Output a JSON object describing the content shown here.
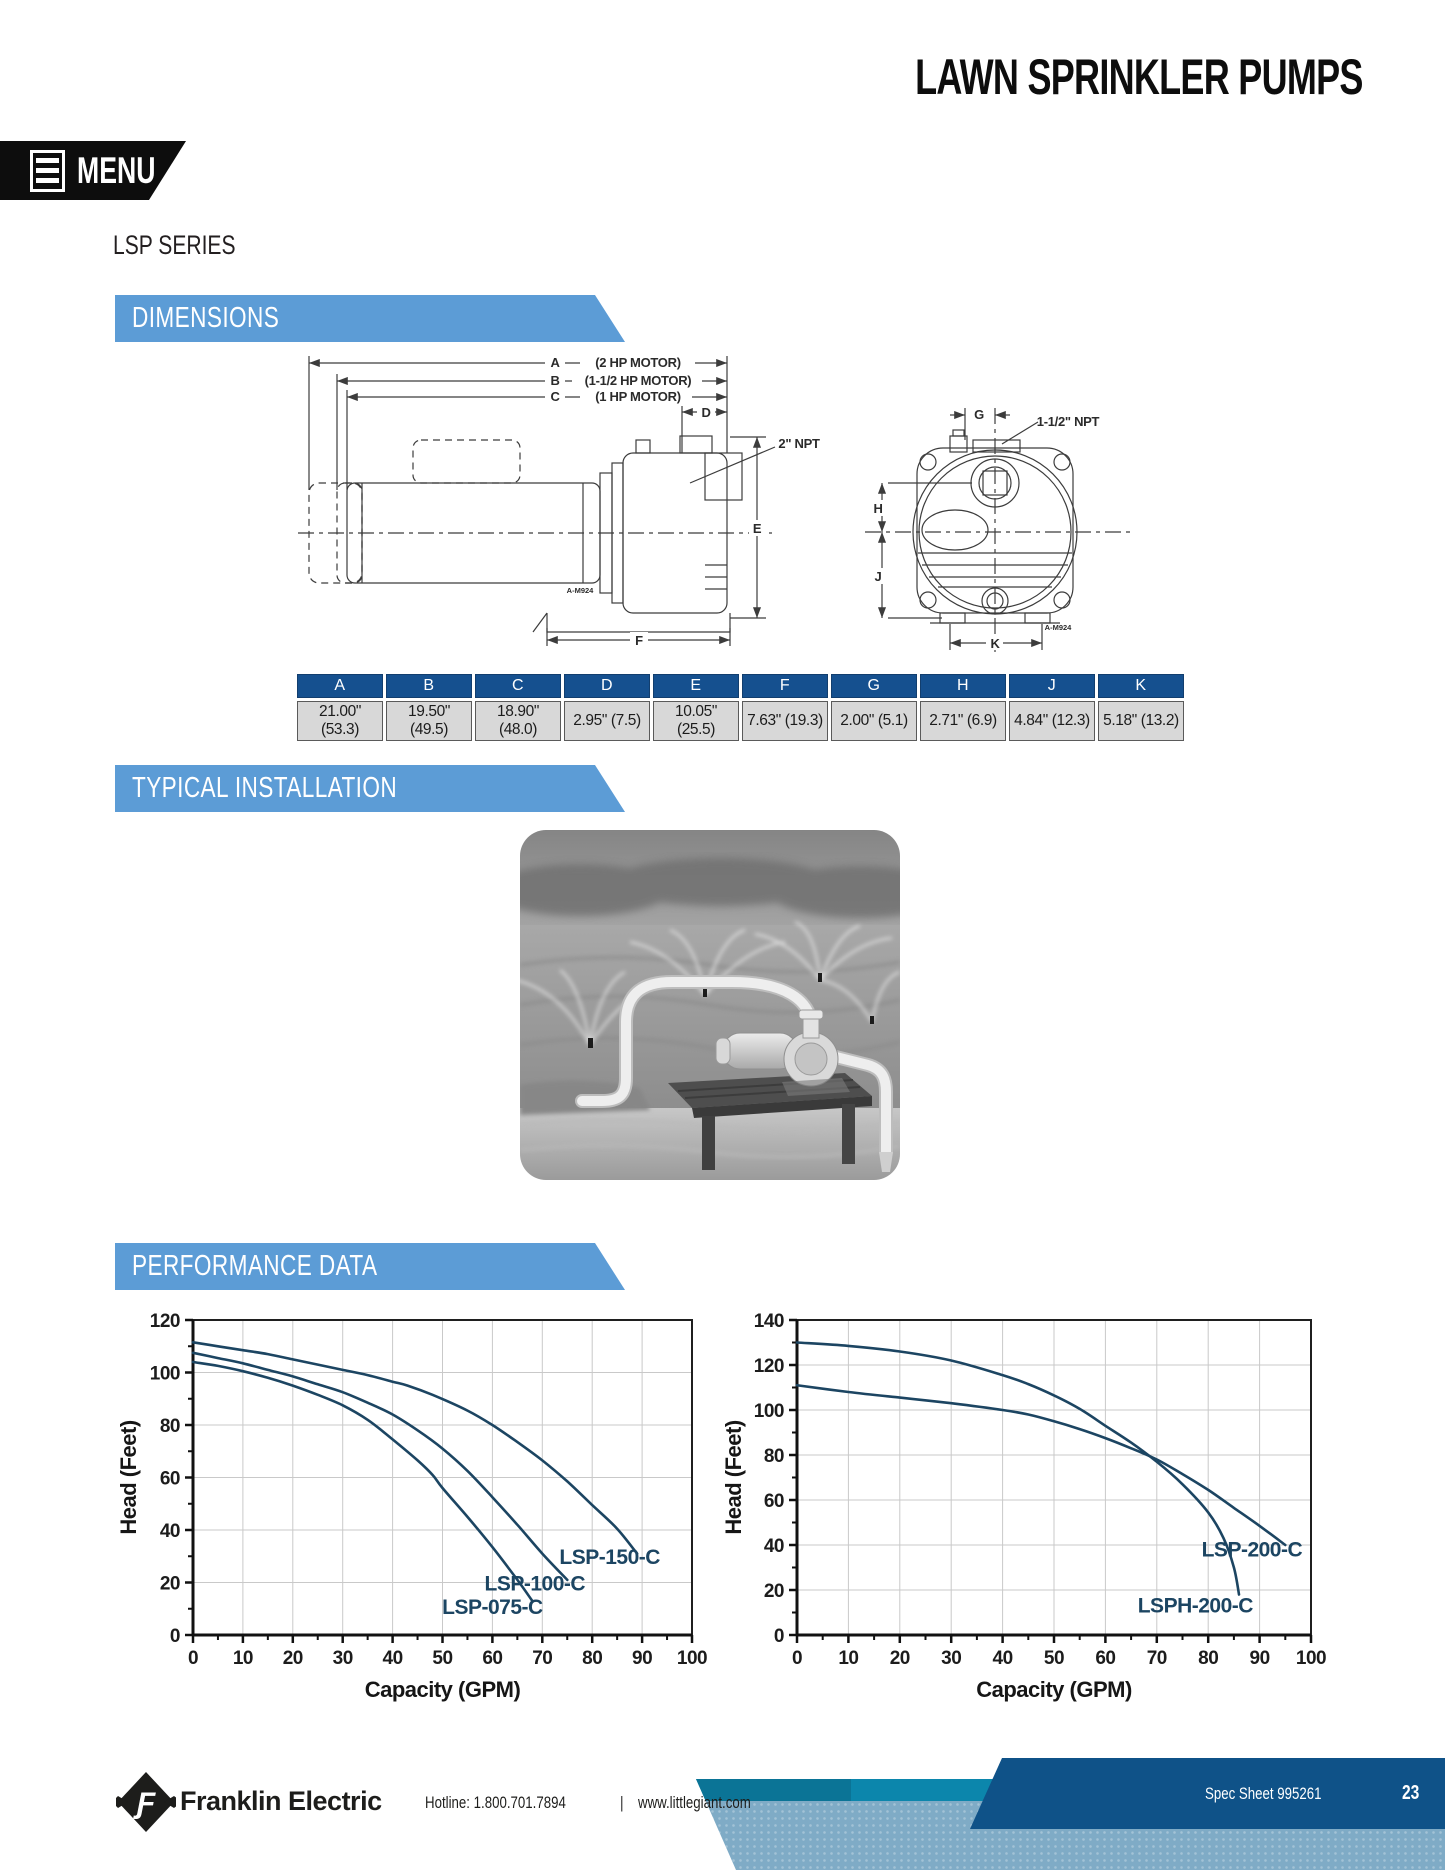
{
  "page": {
    "title": "LAWN SPRINKLER PUMPS",
    "menu_label": "MENU",
    "series_title": "LSP SERIES"
  },
  "sections": {
    "dimensions": "DIMENSIONS",
    "installation": "TYPICAL INSTALLATION",
    "performance": "PERFORMANCE DATA"
  },
  "drawing": {
    "side": {
      "dim_a": "A",
      "motor_a": "(2 HP MOTOR)",
      "dim_b": "B",
      "motor_b": "(1-1/2 HP MOTOR)",
      "dim_c": "C",
      "motor_c": "(1 HP MOTOR)",
      "dim_d": "D",
      "dim_e": "E",
      "dim_f": "F",
      "npt": "2\" NPT",
      "part_ref": "A-M924"
    },
    "front": {
      "dim_g": "G",
      "dim_h": "H",
      "dim_j": "J",
      "dim_k": "K",
      "npt": "1-1/2\" NPT",
      "part_ref": "A-M924"
    }
  },
  "dimensions_table": {
    "headers": [
      "A",
      "B",
      "C",
      "D",
      "E",
      "F",
      "G",
      "H",
      "J",
      "K"
    ],
    "values": [
      "21.00\" (53.3)",
      "19.50\" (49.5)",
      "18.90\" (48.0)",
      "2.95\" (7.5)",
      "10.05\" (25.5)",
      "7.63\" (19.3)",
      "2.00\" (5.1)",
      "2.71\" (6.9)",
      "4.84\" (12.3)",
      "5.18\" (13.2)"
    ]
  },
  "chart_data": [
    {
      "type": "line",
      "xlabel": "Capacity (GPM)",
      "ylabel": "Head (Feet)",
      "xlim": [
        0,
        100
      ],
      "ylim": [
        0,
        120
      ],
      "xtick_step": 10,
      "ytick_step": 20,
      "grid": true,
      "legend_position": "inline-labels",
      "series": [
        {
          "name": "LSP-075-C",
          "label_at": [
            60,
            8
          ],
          "points": [
            [
              0,
              104
            ],
            [
              5,
              102.5
            ],
            [
              10,
              100.5
            ],
            [
              15,
              98
            ],
            [
              20,
              95
            ],
            [
              25,
              91.5
            ],
            [
              30,
              87.5
            ],
            [
              35,
              82
            ],
            [
              40,
              74.5
            ],
            [
              45,
              66.5
            ],
            [
              48,
              61
            ],
            [
              50,
              56
            ],
            [
              55,
              45
            ],
            [
              60,
              33.5
            ],
            [
              65,
              21
            ],
            [
              68,
              13
            ]
          ]
        },
        {
          "name": "LSP-100-C",
          "label_at": [
            68.5,
            17
          ],
          "points": [
            [
              0,
              107.5
            ],
            [
              5,
              105.5
            ],
            [
              10,
              103.5
            ],
            [
              15,
              101
            ],
            [
              20,
              98.5
            ],
            [
              25,
              95.5
            ],
            [
              30,
              92.5
            ],
            [
              35,
              88.5
            ],
            [
              40,
              84
            ],
            [
              45,
              78
            ],
            [
              50,
              71
            ],
            [
              55,
              62.5
            ],
            [
              60,
              52.5
            ],
            [
              65,
              42
            ],
            [
              70,
              31
            ],
            [
              75,
              21
            ]
          ]
        },
        {
          "name": "LSP-150-C",
          "label_at": [
            83.5,
            27
          ],
          "points": [
            [
              0,
              111.5
            ],
            [
              5,
              110
            ],
            [
              10,
              108.5
            ],
            [
              15,
              107
            ],
            [
              20,
              105
            ],
            [
              25,
              103
            ],
            [
              30,
              101
            ],
            [
              35,
              99
            ],
            [
              40,
              96.5
            ],
            [
              43,
              95
            ],
            [
              48,
              91.5
            ],
            [
              55,
              85.5
            ],
            [
              60,
              80
            ],
            [
              65,
              73.5
            ],
            [
              70,
              66.5
            ],
            [
              75,
              58.5
            ],
            [
              80,
              49.5
            ],
            [
              85,
              40.5
            ],
            [
              89,
              31
            ]
          ]
        }
      ]
    },
    {
      "type": "line",
      "xlabel": "Capacity (GPM)",
      "ylabel": "Head (Feet)",
      "xlim": [
        0,
        100
      ],
      "ylim": [
        0,
        140
      ],
      "xtick_step": 10,
      "ytick_step": 20,
      "grid": true,
      "legend_position": "inline-labels",
      "series": [
        {
          "name": "LSPH-200-C",
          "label_at": [
            77.5,
            10
          ],
          "points": [
            [
              0,
              130
            ],
            [
              10,
              128.5
            ],
            [
              20,
              126
            ],
            [
              30,
              122
            ],
            [
              40,
              115.5
            ],
            [
              45,
              111.5
            ],
            [
              50,
              106.5
            ],
            [
              55,
              100.5
            ],
            [
              60,
              93
            ],
            [
              65,
              85.5
            ],
            [
              70,
              77
            ],
            [
              75,
              67
            ],
            [
              80,
              54.5
            ],
            [
              83,
              43
            ],
            [
              85,
              30
            ],
            [
              86,
              18
            ]
          ]
        },
        {
          "name": "LSP-200-C",
          "label_at": [
            88.5,
            35
          ],
          "points": [
            [
              0,
              111
            ],
            [
              10,
              108
            ],
            [
              20,
              105.5
            ],
            [
              30,
              103
            ],
            [
              40,
              100
            ],
            [
              45,
              98
            ],
            [
              50,
              95
            ],
            [
              55,
              91.5
            ],
            [
              60,
              87.5
            ],
            [
              65,
              83
            ],
            [
              70,
              78
            ],
            [
              75,
              71.5
            ],
            [
              80,
              64.5
            ],
            [
              85,
              56.5
            ],
            [
              90,
              48.5
            ],
            [
              95,
              40
            ]
          ]
        }
      ]
    }
  ],
  "footer": {
    "brand": "Franklin Electric",
    "hotline": "Hotline: 1.800.701.7894",
    "separator": "|",
    "website": "www.littlegiant.com",
    "spec_sheet": "Spec Sheet 995261",
    "page_number": "23"
  },
  "colors": {
    "banner_blue": "#5c9cd6",
    "table_header_blue": "#15508f",
    "curve_navy": "#1c4562",
    "footer_navy": "#0f5288",
    "footer_teal": "#0c86ac",
    "footer_light_blue": "#7fabc6"
  }
}
